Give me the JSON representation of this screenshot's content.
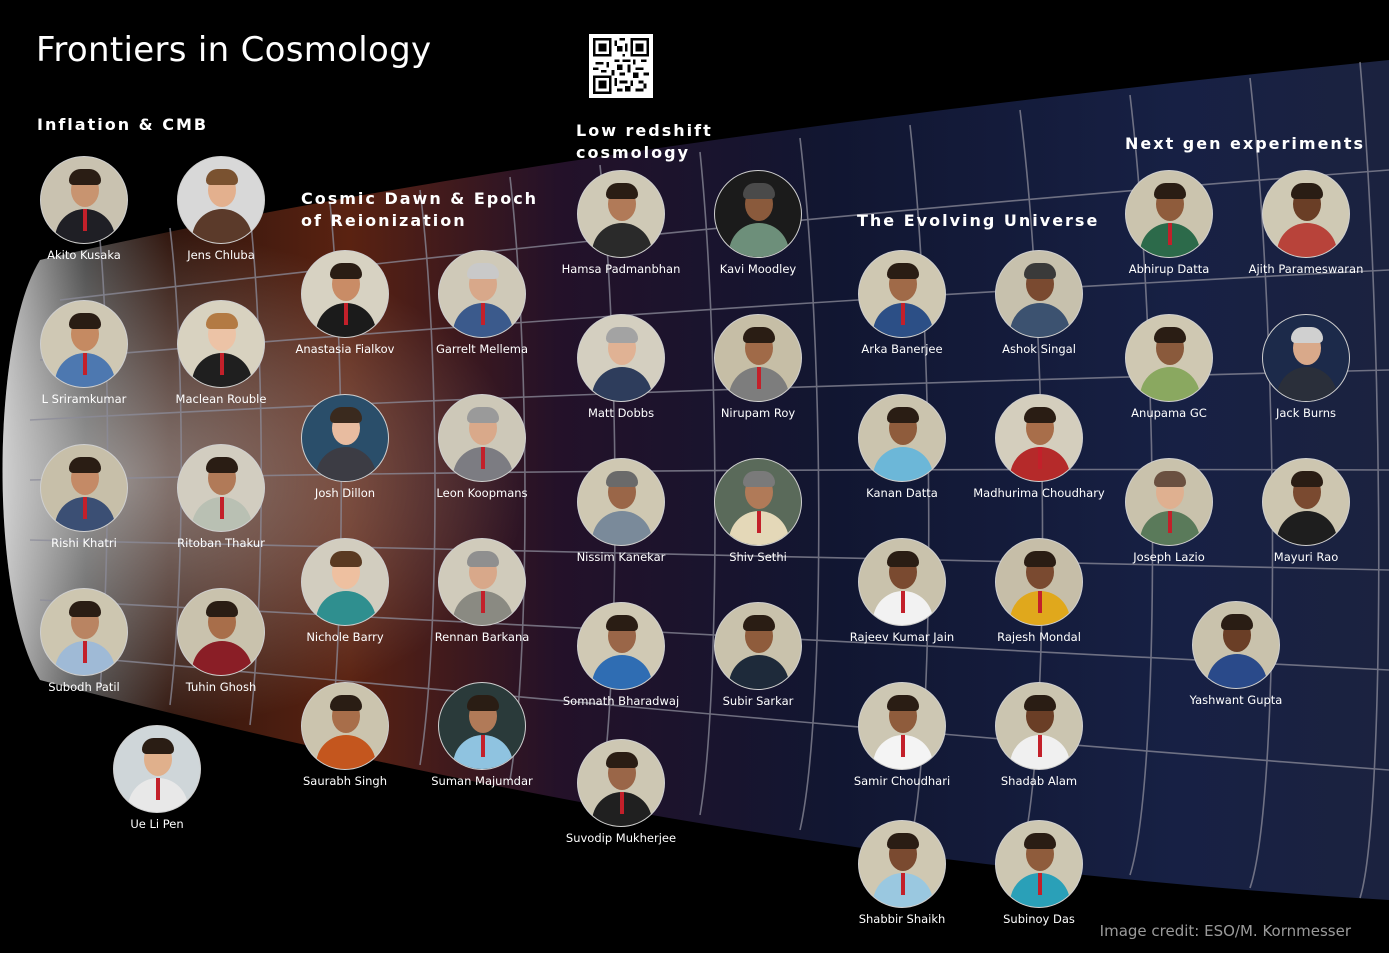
{
  "title": "Frontiers in Cosmology",
  "credit": "Image credit: ESO/M. Kornmesser",
  "sections": {
    "inflation": "Inflation & CMB",
    "dawn_line1": "Cosmic Dawn & Epoch",
    "dawn_line2": "of Reionization",
    "lowz_line1": "Low redshift",
    "lowz_line2": "cosmology",
    "evolving": "The Evolving Universe",
    "nextgen": "Next gen experiments"
  },
  "people": {
    "inflation": [
      "Akito Kusaka",
      "Jens Chluba",
      "L Sriramkumar",
      "Maclean Rouble",
      "Rishi Khatri",
      "Ritoban Thakur",
      "Subodh Patil",
      "Tuhin Ghosh",
      "Ue Li Pen"
    ],
    "dawn": [
      "Anastasia Fialkov",
      "Garrelt Mellema",
      "Josh Dillon",
      "Leon Koopmans",
      "Nichole Barry",
      "Rennan Barkana",
      "Saurabh Singh",
      "Suman Majumdar"
    ],
    "lowz": [
      "Hamsa Padmanbhan",
      "Kavi Moodley",
      "Matt Dobbs",
      "Nirupam Roy",
      "Nissim Kanekar",
      "Shiv Sethi",
      "Somnath Bharadwaj",
      "Subir Sarkar",
      "Suvodip Mukherjee"
    ],
    "evolving": [
      "Arka Banerjee",
      "Ashok Singal",
      "Kanan Datta",
      "Madhurima Choudhary",
      "Rajeev Kumar Jain",
      "Rajesh Mondal",
      "Samir Choudhari",
      "Shadab Alam",
      "Shabbir Shaikh",
      "Subinoy Das"
    ],
    "nextgen": [
      "Abhirup Datta",
      "Ajith Parameswaran",
      "Anupama GC",
      "Jack Burns",
      "Joseph Lazio",
      "Mayuri Rao",
      "Yashwant Gupta"
    ]
  },
  "colors": {
    "background": "#000000",
    "grid": "#8c8c9a",
    "reionization_glow": "#7a2a14",
    "universe_blue": "#1b2a5a"
  }
}
